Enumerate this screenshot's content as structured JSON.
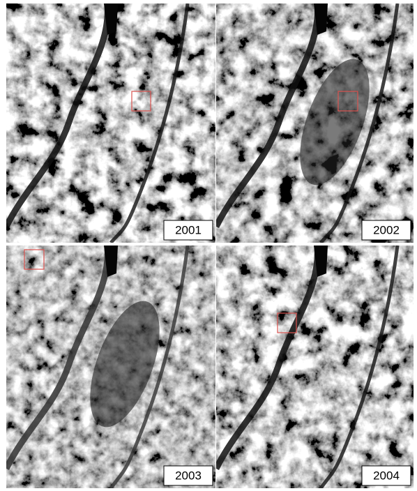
{
  "panels": [
    {
      "label": "2001"
    },
    {
      "label": "2002"
    },
    {
      "label": "2003"
    },
    {
      "label": "2004"
    }
  ]
}
